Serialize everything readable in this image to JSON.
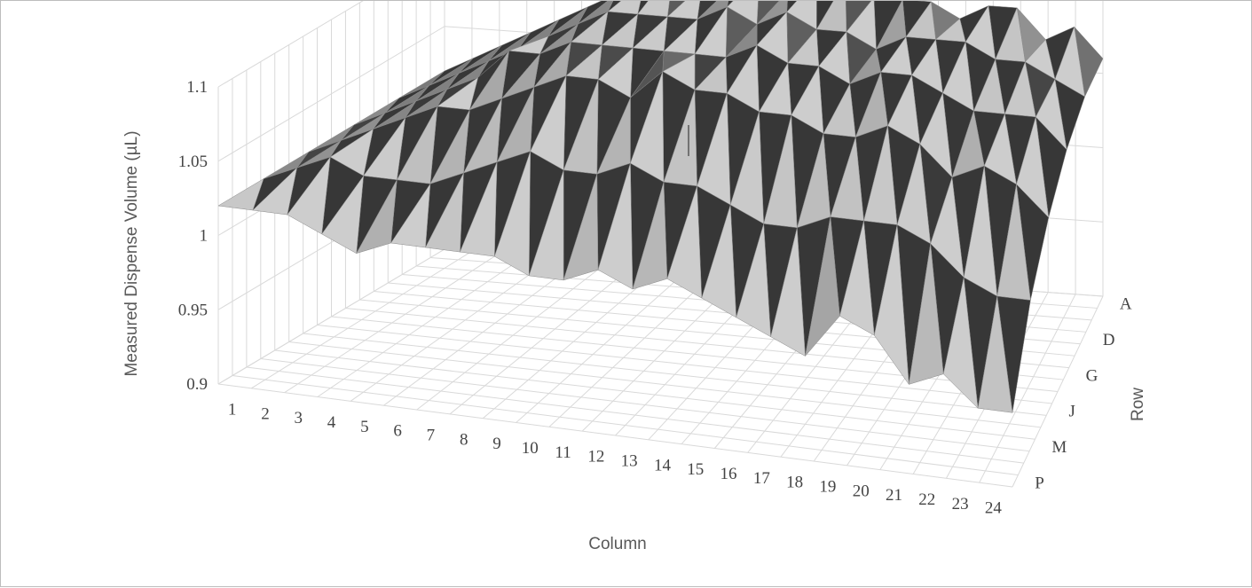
{
  "chart_data": {
    "type": "surface",
    "title": "",
    "ylabel": "Measured Dispense Volume (µL)",
    "xlabel": "Column",
    "depth_label": "Row",
    "zlim": [
      0.9,
      1.1
    ],
    "z_ticks": [
      "1.1",
      "1.05",
      "1",
      "0.95",
      "0.9"
    ],
    "x_ticks": [
      "1",
      "2",
      "3",
      "4",
      "5",
      "6",
      "7",
      "8",
      "9",
      "10",
      "11",
      "12",
      "13",
      "14",
      "15",
      "16",
      "17",
      "18",
      "19",
      "20",
      "21",
      "22",
      "23",
      "24"
    ],
    "row_ticks": [
      "A",
      "D",
      "G",
      "J",
      "M",
      "P"
    ],
    "grid": true,
    "colors": {
      "surface_light": "#bdbdbd",
      "surface_dark": "#3a3a3a",
      "grid": "#d9d9d9",
      "text": "#444444"
    },
    "surface_values": [
      [
        1.02,
        1.03,
        1.04,
        1.05,
        1.06,
        1.07,
        1.08,
        1.09,
        1.1,
        1.09,
        1.09,
        1.1,
        1.09,
        1.1,
        1.1,
        1.09,
        1.09,
        1.09,
        1.08,
        1.09,
        1.09,
        1.07,
        1.08,
        1.06
      ],
      [
        1.02,
        1.03,
        1.04,
        1.05,
        1.06,
        1.07,
        1.08,
        1.09,
        1.09,
        1.09,
        1.09,
        1.1,
        1.09,
        1.1,
        1.09,
        1.09,
        1.08,
        1.09,
        1.09,
        1.09,
        1.08,
        1.08,
        1.07,
        1.06
      ],
      [
        1.02,
        1.03,
        1.04,
        1.05,
        1.06,
        1.08,
        1.08,
        1.09,
        1.09,
        1.09,
        1.09,
        1.09,
        1.09,
        1.1,
        1.09,
        1.09,
        1.08,
        1.09,
        1.09,
        1.08,
        1.07,
        1.07,
        1.07,
        1.05
      ],
      [
        1.02,
        1.03,
        1.04,
        1.05,
        1.06,
        1.06,
        1.07,
        1.08,
        1.09,
        1.09,
        1.08,
        1.1,
        1.09,
        1.09,
        1.08,
        1.08,
        1.07,
        1.07,
        1.08,
        1.07,
        1.05,
        1.06,
        1.05,
        1.03
      ],
      [
        1.02,
        1.03,
        1.04,
        1.03,
        1.03,
        1.03,
        1.04,
        1.05,
        1.06,
        1.05,
        1.05,
        1.06,
        1.05,
        1.05,
        1.04,
        1.03,
        1.03,
        1.04,
        1.04,
        1.04,
        1.03,
        1.01,
        1.0,
        1.0
      ],
      [
        1.02,
        1.02,
        1.02,
        1.01,
        1.0,
        1.01,
        1.01,
        1.01,
        1.01,
        1.0,
        1.0,
        1.01,
        1.0,
        1.01,
        1.0,
        0.99,
        0.98,
        0.97,
        1.0,
        0.99,
        0.96,
        0.97,
        0.95,
        0.95
      ]
    ]
  }
}
